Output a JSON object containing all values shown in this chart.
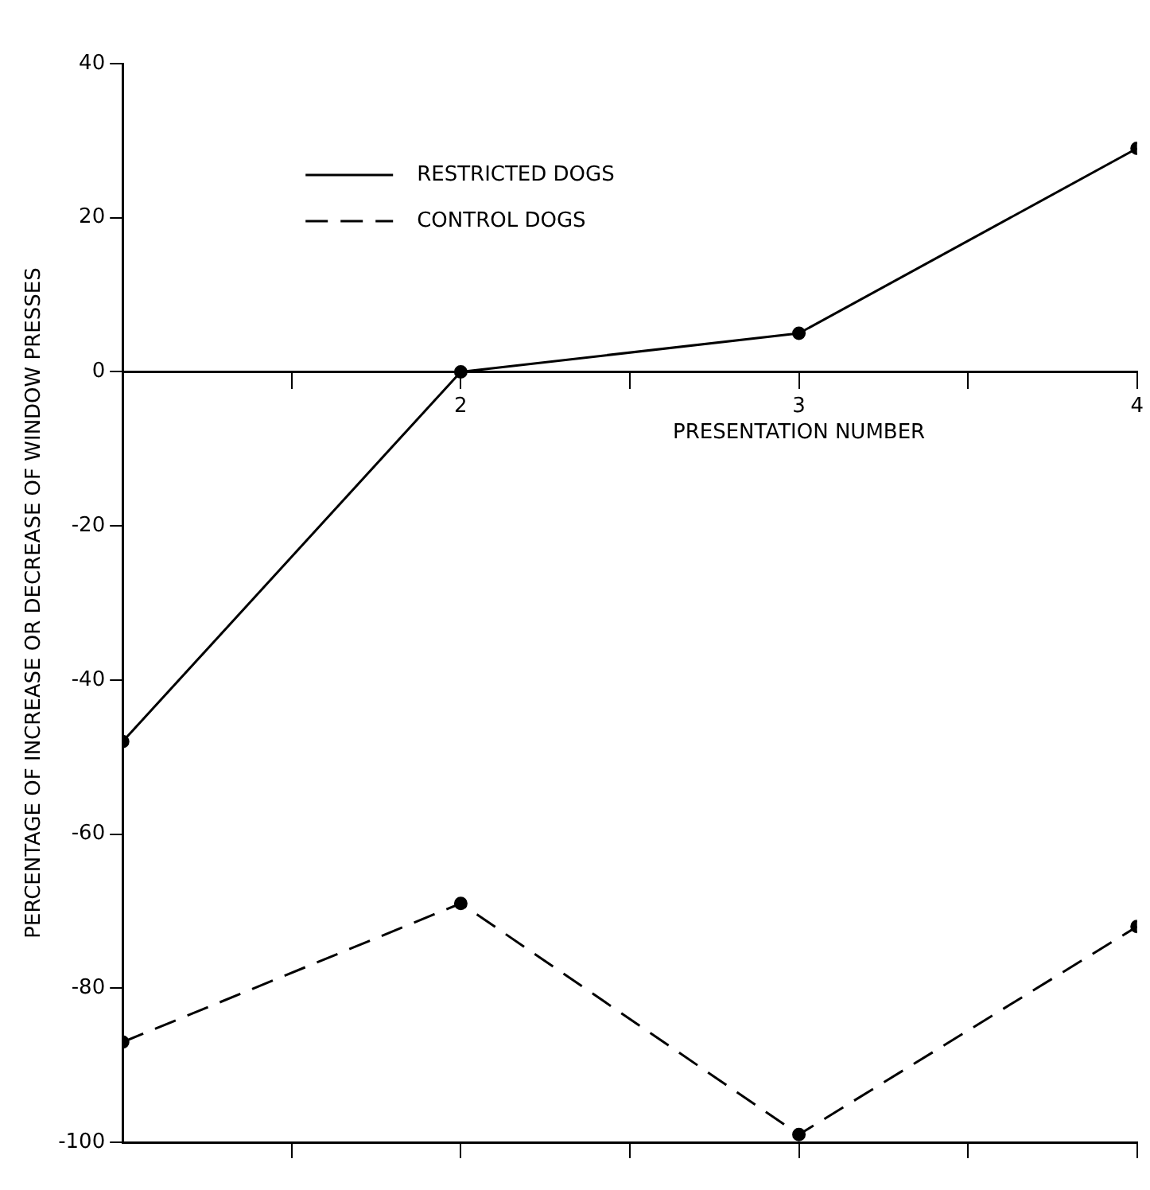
{
  "chart_data": {
    "type": "line",
    "xlabel": "PRESENTATION NUMBER",
    "ylabel": "PERCENTAGE OF INCREASE OR DECREASE OF WINDOW PRESSES",
    "x": [
      1,
      2,
      3,
      4
    ],
    "series": [
      {
        "name": "RESTRICTED DOGS",
        "color": "#000000",
        "values": [
          -48,
          0,
          5,
          29
        ],
        "line_style": "solid"
      },
      {
        "name": "CONTROL DOGS",
        "color": "#000000",
        "values": [
          -87,
          -69,
          -99,
          -72
        ],
        "line_style": "dashed"
      }
    ],
    "xlim": [
      1,
      4
    ],
    "xticks": [
      {
        "value": 1.5,
        "label": null
      },
      2,
      {
        "value": 2.5,
        "label": null
      },
      3,
      {
        "value": 3.5,
        "label": null
      },
      4
    ],
    "ylim": [
      -100,
      40
    ],
    "yticks": [
      -100,
      -80,
      -60,
      -40,
      -20,
      0,
      20,
      40
    ],
    "grid": false,
    "legend": "top left",
    "marker": "circle"
  }
}
